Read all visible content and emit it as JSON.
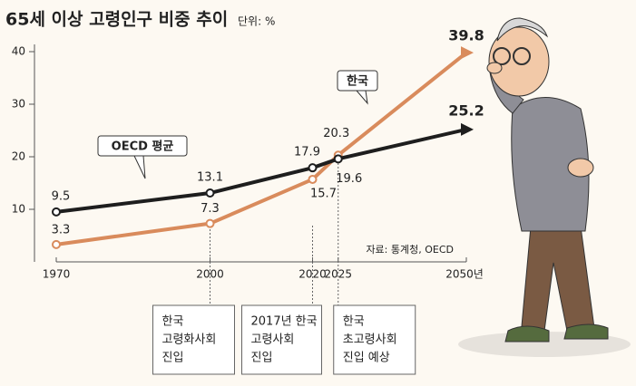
{
  "chart_data": {
    "type": "line",
    "title": "65세 이상 고령인구 비중 추이",
    "subtitle": "단위: %",
    "source": "자료: 통계청, OECD",
    "x": [
      1970,
      2000,
      2020,
      2025,
      2050
    ],
    "series": [
      {
        "name": "한국",
        "color": "#d98b5c",
        "values": [
          3.3,
          7.3,
          15.7,
          20.3,
          39.8
        ]
      },
      {
        "name": "OECD 평균",
        "color": "#1e1e1e",
        "values": [
          9.5,
          13.1,
          17.9,
          19.6,
          25.2
        ]
      }
    ],
    "xlim": [
      1970,
      2050
    ],
    "xticks": [
      1970,
      2000,
      2020,
      2025,
      {
        "value": 2050,
        "label": "2050년"
      }
    ],
    "ylim": [
      0,
      40
    ],
    "yticks": [
      10,
      20,
      30,
      40
    ],
    "annotations": [
      {
        "x": 2000,
        "lines": [
          "한국",
          "고령화사회",
          "진입"
        ]
      },
      {
        "x": 2020,
        "lines": [
          "2017년 한국",
          "고령사회",
          "진입"
        ]
      },
      {
        "x": 2025,
        "lines": [
          "한국",
          "초고령사회",
          "진입 예상"
        ]
      }
    ]
  }
}
